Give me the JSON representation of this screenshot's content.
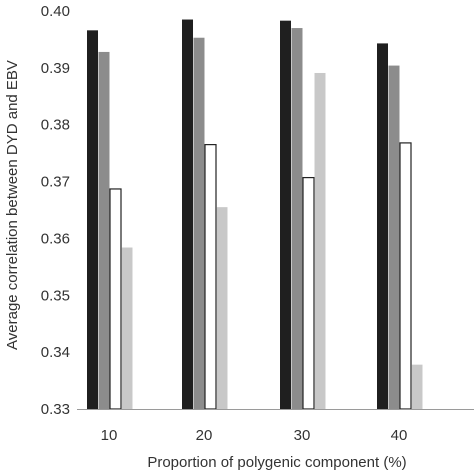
{
  "chart_data": {
    "type": "bar",
    "title": "",
    "xlabel": "Proportion of polygenic component (%)",
    "ylabel": "Average correlation between DYD and EBV",
    "categories": [
      "10",
      "20",
      "30",
      "40"
    ],
    "ylim": [
      0.33,
      0.4
    ],
    "yticks": [
      "0.33",
      "0.34",
      "0.35",
      "0.36",
      "0.37",
      "0.38",
      "0.39",
      "0.40"
    ],
    "grid": false,
    "legend": "none",
    "series": [
      {
        "color": "#1f1f1f",
        "stroke": "#1f1f1f",
        "values": [
          0.3966,
          0.3985,
          0.3983,
          0.3943
        ]
      },
      {
        "color": "#8c8c8c",
        "stroke": "#8c8c8c",
        "values": [
          0.3928,
          0.3953,
          0.397,
          0.3904
        ]
      },
      {
        "color": "#ffffff",
        "stroke": "#222222",
        "values": [
          0.3687,
          0.3765,
          0.3707,
          0.3768
        ]
      },
      {
        "color": "#c8c8c8",
        "stroke": "#c8c8c8",
        "values": [
          0.3584,
          0.3655,
          0.3891,
          0.3378
        ]
      }
    ]
  }
}
